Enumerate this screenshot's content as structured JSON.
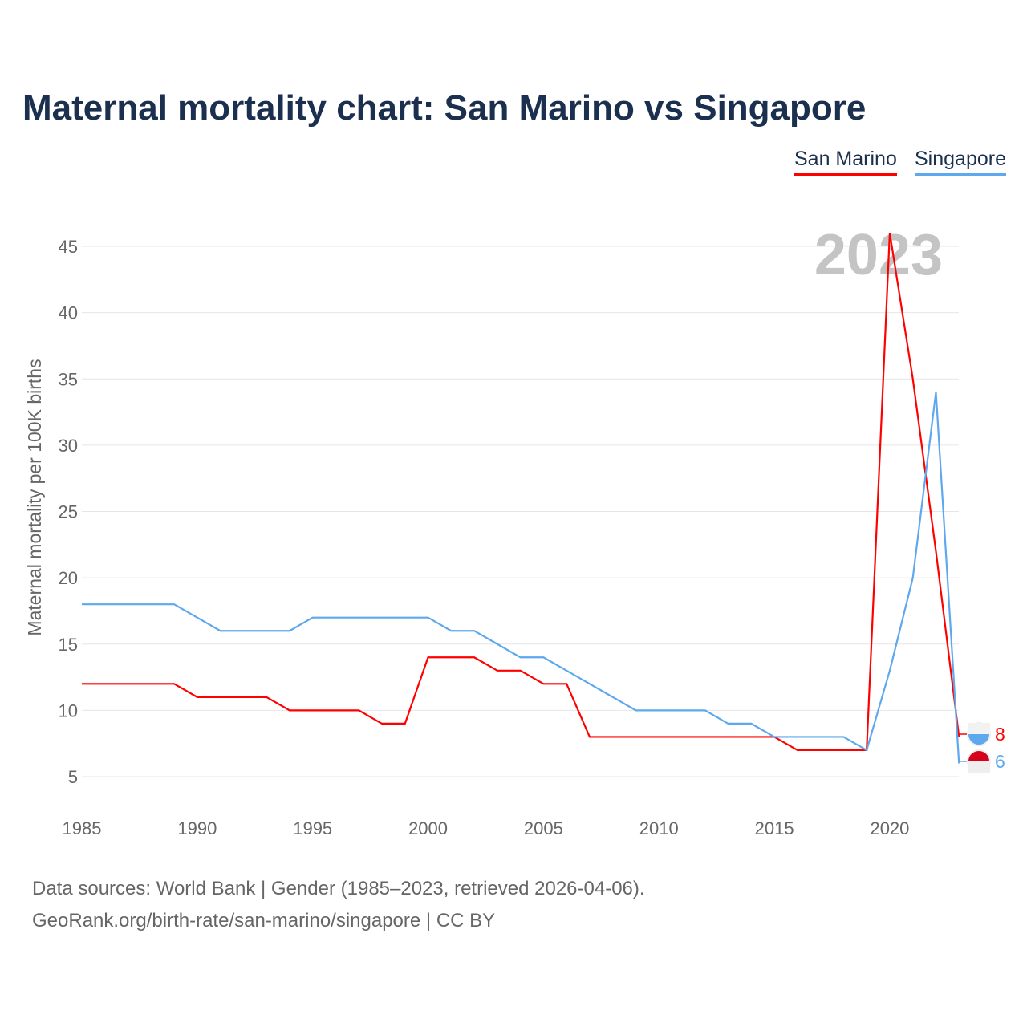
{
  "title": "Maternal mortality chart: San Marino vs Singapore",
  "footer": {
    "line1": "Data sources: World Bank | Gender (1985–2023, retrieved 2026-04-06).",
    "line2": "GeoRank.org/birth-rate/san-marino/singapore | CC BY"
  },
  "chart_data": {
    "type": "line",
    "title": "Maternal mortality chart: San Marino vs Singapore",
    "ylabel": "Maternal mortality per 100K births",
    "xlabel": "",
    "year_label": "2023",
    "ylim": [
      0,
      48
    ],
    "xlim": [
      1985,
      2023
    ],
    "yticks": [
      5,
      10,
      15,
      20,
      25,
      30,
      35,
      40,
      45
    ],
    "xticks": [
      1985,
      1990,
      1995,
      2000,
      2005,
      2010,
      2015,
      2020
    ],
    "legend_position": "top-right",
    "x": [
      1985,
      1986,
      1987,
      1988,
      1989,
      1990,
      1991,
      1992,
      1993,
      1994,
      1995,
      1996,
      1997,
      1998,
      1999,
      2000,
      2001,
      2002,
      2003,
      2004,
      2005,
      2006,
      2007,
      2008,
      2009,
      2010,
      2011,
      2012,
      2013,
      2014,
      2015,
      2016,
      2017,
      2018,
      2019,
      2020,
      2021,
      2022,
      2023
    ],
    "series": [
      {
        "name": "San Marino",
        "color": "#ff0000",
        "end_label": "8",
        "values": [
          12,
          12,
          12,
          12,
          12,
          11,
          11,
          11,
          11,
          10,
          10,
          10,
          10,
          9,
          9,
          14,
          14,
          14,
          13,
          13,
          12,
          12,
          8,
          8,
          8,
          8,
          8,
          8,
          8,
          8,
          8,
          7,
          7,
          7,
          7,
          46,
          35,
          22,
          8
        ]
      },
      {
        "name": "Singapore",
        "color": "#5ea8ee",
        "end_label": "6",
        "values": [
          18,
          18,
          18,
          18,
          18,
          17,
          16,
          16,
          16,
          16,
          17,
          17,
          17,
          17,
          17,
          17,
          16,
          16,
          15,
          14,
          14,
          13,
          12,
          11,
          10,
          10,
          10,
          10,
          9,
          9,
          8,
          8,
          8,
          8,
          7,
          13,
          20,
          34,
          6
        ]
      }
    ]
  }
}
